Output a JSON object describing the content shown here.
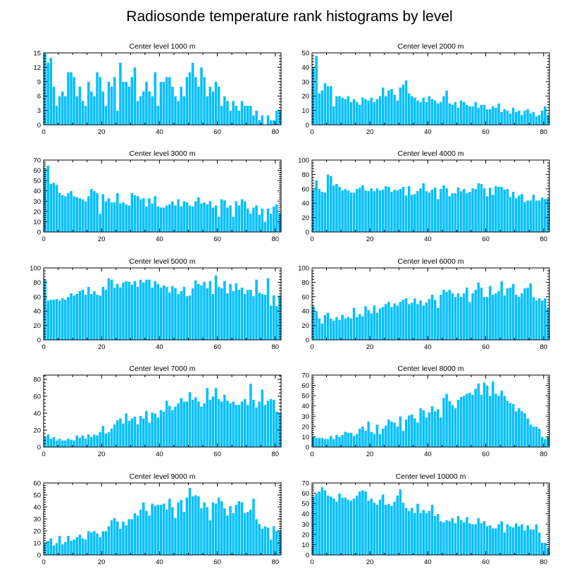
{
  "figure_title": "Radiosonde temperature rank histograms by level",
  "colors": {
    "bar": "#00bfff",
    "bar_edge": "#ffffff",
    "axis": "#000000"
  },
  "chart_data": [
    {
      "type": "bar",
      "title": "Center level 1000 m",
      "x_start": 0,
      "xlim": [
        0,
        82
      ],
      "xticks": [
        0,
        20,
        40,
        60,
        80
      ],
      "ylim": [
        0,
        15
      ],
      "yticks": [
        0,
        3,
        6,
        9,
        12,
        15
      ],
      "values": [
        15,
        13,
        14,
        8,
        4,
        6,
        7,
        6,
        11,
        11,
        10,
        6,
        8,
        5,
        4,
        9,
        7,
        6,
        11,
        10,
        7,
        4,
        9,
        8,
        10,
        3,
        13,
        9,
        9,
        8,
        10,
        12,
        5,
        6,
        7,
        9,
        7,
        6,
        11,
        4,
        9,
        9,
        10,
        10,
        8,
        6,
        5,
        8,
        6,
        10,
        11,
        13,
        10,
        8,
        12,
        10,
        6,
        8,
        7,
        9,
        8,
        4,
        6,
        5,
        3,
        5,
        4,
        3,
        5,
        4,
        4,
        4,
        2,
        3,
        1,
        2,
        0,
        2,
        1,
        1,
        3,
        3
      ]
    },
    {
      "type": "bar",
      "title": "Center level 2000 m",
      "x_start": 0,
      "xlim": [
        0,
        82
      ],
      "xticks": [
        0,
        20,
        40,
        60,
        80
      ],
      "ylim": [
        0,
        50
      ],
      "yticks": [
        0,
        10,
        20,
        30,
        40,
        50
      ],
      "values": [
        40,
        48,
        22,
        24,
        29,
        27,
        27,
        13,
        20,
        20,
        19,
        18,
        20,
        16,
        18,
        16,
        14,
        19,
        18,
        17,
        19,
        16,
        18,
        20,
        26,
        20,
        24,
        25,
        21,
        17,
        26,
        28,
        31,
        22,
        20,
        19,
        17,
        16,
        19,
        16,
        20,
        18,
        17,
        15,
        16,
        20,
        24,
        15,
        14,
        16,
        12,
        17,
        16,
        14,
        13,
        13,
        16,
        12,
        14,
        14,
        11,
        11,
        13,
        12,
        15,
        9,
        11,
        10,
        8,
        12,
        9,
        10,
        7,
        10,
        11,
        8,
        9,
        6,
        7,
        10,
        13,
        7
      ]
    },
    {
      "type": "bar",
      "title": "Center level 3000 m",
      "x_start": 0,
      "xlim": [
        0,
        82
      ],
      "xticks": [
        0,
        20,
        40,
        60,
        80
      ],
      "ylim": [
        0,
        70
      ],
      "yticks": [
        0,
        10,
        20,
        30,
        40,
        50,
        60,
        70
      ],
      "values": [
        62,
        65,
        47,
        48,
        46,
        38,
        36,
        35,
        38,
        40,
        35,
        34,
        33,
        32,
        30,
        35,
        42,
        40,
        38,
        18,
        37,
        30,
        33,
        29,
        29,
        38,
        28,
        29,
        27,
        26,
        38,
        36,
        35,
        32,
        33,
        25,
        33,
        28,
        35,
        25,
        24,
        24,
        26,
        27,
        30,
        26,
        32,
        25,
        30,
        29,
        26,
        25,
        30,
        34,
        28,
        29,
        27,
        30,
        24,
        26,
        15,
        32,
        31,
        24,
        26,
        15,
        30,
        26,
        32,
        30,
        23,
        18,
        24,
        26,
        17,
        23,
        10,
        23,
        18,
        25,
        27,
        18
      ]
    },
    {
      "type": "bar",
      "title": "Center level 4000 m",
      "x_start": 0,
      "xlim": [
        0,
        82
      ],
      "xticks": [
        0,
        20,
        40,
        60,
        80
      ],
      "ylim": [
        0,
        100
      ],
      "yticks": [
        0,
        20,
        40,
        60,
        80,
        100
      ],
      "values": [
        59,
        72,
        60,
        56,
        55,
        80,
        78,
        65,
        67,
        63,
        58,
        60,
        58,
        55,
        55,
        60,
        62,
        65,
        58,
        57,
        61,
        57,
        61,
        58,
        59,
        64,
        63,
        56,
        59,
        58,
        60,
        63,
        51,
        64,
        52,
        53,
        57,
        61,
        68,
        57,
        55,
        59,
        62,
        46,
        60,
        65,
        61,
        50,
        54,
        54,
        62,
        57,
        60,
        54,
        56,
        61,
        60,
        68,
        67,
        61,
        50,
        62,
        52,
        64,
        63,
        63,
        59,
        60,
        49,
        56,
        47,
        51,
        53,
        42,
        44,
        44,
        52,
        44,
        44,
        48,
        46,
        47
      ]
    },
    {
      "type": "bar",
      "title": "Center level 5000 m",
      "x_start": 0,
      "xlim": [
        0,
        82
      ],
      "xticks": [
        0,
        20,
        40,
        60,
        80
      ],
      "ylim": [
        0,
        100
      ],
      "yticks": [
        0,
        20,
        40,
        60,
        80,
        100
      ],
      "values": [
        84,
        55,
        56,
        56,
        57,
        55,
        58,
        56,
        60,
        65,
        62,
        64,
        68,
        70,
        63,
        74,
        64,
        68,
        63,
        62,
        74,
        70,
        86,
        84,
        73,
        78,
        73,
        80,
        82,
        81,
        77,
        82,
        74,
        84,
        80,
        84,
        84,
        73,
        82,
        78,
        73,
        76,
        74,
        66,
        75,
        72,
        64,
        68,
        74,
        61,
        62,
        72,
        83,
        78,
        76,
        81,
        72,
        82,
        64,
        90,
        74,
        72,
        82,
        65,
        78,
        68,
        79,
        70,
        73,
        64,
        70,
        70,
        61,
        84,
        66,
        64,
        63,
        86,
        48,
        62,
        47,
        62
      ]
    },
    {
      "type": "bar",
      "title": "Center level 6000 m",
      "x_start": 0,
      "xlim": [
        0,
        82
      ],
      "xticks": [
        0,
        20,
        40,
        60,
        80
      ],
      "ylim": [
        0,
        100
      ],
      "yticks": [
        0,
        20,
        40,
        60,
        80,
        100
      ],
      "values": [
        47,
        40,
        30,
        23,
        35,
        38,
        30,
        27,
        32,
        28,
        35,
        30,
        32,
        30,
        45,
        32,
        36,
        33,
        47,
        42,
        37,
        48,
        38,
        44,
        46,
        50,
        53,
        46,
        51,
        48,
        53,
        56,
        58,
        50,
        52,
        58,
        50,
        55,
        48,
        52,
        57,
        63,
        56,
        45,
        63,
        70,
        67,
        70,
        65,
        60,
        65,
        60,
        65,
        73,
        53,
        65,
        70,
        80,
        73,
        60,
        60,
        75,
        63,
        65,
        68,
        82,
        62,
        72,
        73,
        78,
        63,
        60,
        65,
        72,
        73,
        79,
        60,
        55,
        58,
        55,
        58,
        44
      ]
    },
    {
      "type": "bar",
      "title": "Center level 7000 m",
      "x_start": 0,
      "xlim": [
        0,
        82
      ],
      "xticks": [
        0,
        20,
        40,
        60,
        80
      ],
      "ylim": [
        0,
        85
      ],
      "yticks": [
        0,
        20,
        40,
        60,
        80
      ],
      "values": [
        12,
        15,
        10,
        12,
        8,
        10,
        8,
        8,
        10,
        9,
        8,
        14,
        11,
        14,
        10,
        15,
        12,
        15,
        14,
        18,
        25,
        16,
        18,
        22,
        27,
        32,
        34,
        28,
        40,
        31,
        34,
        36,
        27,
        37,
        34,
        43,
        29,
        41,
        40,
        35,
        44,
        42,
        55,
        49,
        44,
        48,
        52,
        58,
        54,
        54,
        65,
        56,
        59,
        54,
        48,
        52,
        70,
        56,
        60,
        70,
        57,
        54,
        62,
        55,
        52,
        54,
        50,
        50,
        54,
        57,
        50,
        75,
        56,
        47,
        54,
        68,
        50,
        55,
        57,
        56,
        42,
        40
      ]
    },
    {
      "type": "bar",
      "title": "Center level 8000 m",
      "x_start": 0,
      "xlim": [
        0,
        82
      ],
      "xticks": [
        0,
        20,
        40,
        60,
        80
      ],
      "ylim": [
        0,
        70
      ],
      "yticks": [
        0,
        10,
        20,
        30,
        40,
        50,
        60,
        70
      ],
      "values": [
        10,
        9,
        9,
        9,
        8,
        8,
        11,
        8,
        12,
        10,
        12,
        15,
        14,
        14,
        11,
        13,
        18,
        20,
        16,
        25,
        15,
        13,
        22,
        13,
        18,
        21,
        27,
        25,
        24,
        20,
        30,
        16,
        27,
        31,
        32,
        28,
        24,
        38,
        36,
        29,
        34,
        40,
        35,
        37,
        29,
        48,
        52,
        45,
        41,
        38,
        46,
        49,
        50,
        52,
        53,
        51,
        57,
        62,
        51,
        63,
        60,
        50,
        64,
        52,
        50,
        55,
        50,
        45,
        43,
        42,
        35,
        38,
        35,
        33,
        28,
        22,
        20,
        20,
        18,
        10,
        8,
        10
      ]
    },
    {
      "type": "bar",
      "title": "Center level 9000 m",
      "x_start": 0,
      "xlim": [
        0,
        82
      ],
      "xticks": [
        0,
        20,
        40,
        60,
        80
      ],
      "ylim": [
        0,
        60
      ],
      "yticks": [
        0,
        10,
        20,
        30,
        40,
        50,
        60
      ],
      "values": [
        10,
        12,
        14,
        8,
        10,
        16,
        9,
        11,
        16,
        12,
        13,
        15,
        17,
        14,
        13,
        20,
        19,
        20,
        18,
        15,
        20,
        20,
        24,
        29,
        31,
        28,
        22,
        28,
        25,
        30,
        30,
        35,
        33,
        38,
        44,
        37,
        33,
        43,
        41,
        42,
        42,
        43,
        38,
        47,
        40,
        31,
        44,
        46,
        36,
        48,
        56,
        49,
        50,
        49,
        39,
        44,
        40,
        29,
        44,
        43,
        48,
        45,
        39,
        33,
        41,
        35,
        42,
        45,
        44,
        35,
        36,
        38,
        47,
        30,
        26,
        22,
        24,
        23,
        13,
        24,
        20,
        20
      ]
    },
    {
      "type": "bar",
      "title": "Center level 10000 m",
      "x_start": 0,
      "xlim": [
        0,
        82
      ],
      "xticks": [
        0,
        20,
        40,
        60,
        80
      ],
      "ylim": [
        0,
        70
      ],
      "yticks": [
        0,
        10,
        20,
        30,
        40,
        50,
        60,
        70
      ],
      "values": [
        57,
        60,
        62,
        66,
        63,
        58,
        57,
        55,
        52,
        60,
        56,
        56,
        54,
        53,
        55,
        58,
        62,
        63,
        62,
        53,
        55,
        51,
        49,
        54,
        59,
        49,
        50,
        48,
        52,
        58,
        64,
        51,
        46,
        43,
        46,
        41,
        50,
        41,
        44,
        41,
        43,
        49,
        38,
        40,
        33,
        32,
        34,
        33,
        36,
        31,
        38,
        34,
        32,
        37,
        31,
        30,
        30,
        36,
        31,
        33,
        28,
        29,
        26,
        26,
        30,
        33,
        22,
        30,
        28,
        27,
        31,
        28,
        30,
        24,
        29,
        25,
        25,
        30,
        22,
        12,
        12,
        7
      ]
    }
  ]
}
